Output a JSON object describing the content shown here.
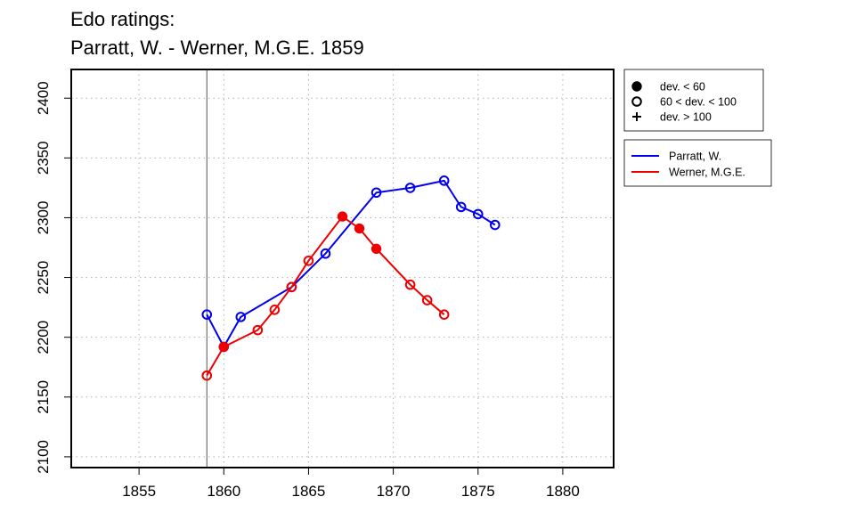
{
  "chart_data": {
    "type": "line",
    "title_lines": [
      "Edo ratings:",
      "Parratt, W. - Werner, M.G.E. 1859"
    ],
    "xlabel": "",
    "ylabel": "",
    "xlim": [
      1851,
      1883
    ],
    "ylim": [
      2091,
      2424
    ],
    "x_ticks": [
      1855,
      1860,
      1865,
      1870,
      1875,
      1880
    ],
    "y_ticks": [
      2100,
      2150,
      2200,
      2250,
      2300,
      2350,
      2400
    ],
    "grid": true,
    "reference_line_x": 1859,
    "deviation_legend": {
      "position": "top-right",
      "entries": [
        {
          "symbol": "filled-circle",
          "label": "dev. < 60"
        },
        {
          "symbol": "open-circle",
          "label": "60 < dev. < 100"
        },
        {
          "symbol": "plus",
          "label": "dev. > 100"
        }
      ]
    },
    "series_legend_position": "right",
    "series": [
      {
        "name": "Parratt, W.",
        "color": "#0000ee",
        "points": [
          {
            "x": 1859,
            "y": 2219,
            "dev": "open-circle"
          },
          {
            "x": 1860,
            "y": 2192,
            "dev": "open-circle"
          },
          {
            "x": 1861,
            "y": 2217,
            "dev": "open-circle"
          },
          {
            "x": 1864,
            "y": 2242,
            "dev": "open-circle"
          },
          {
            "x": 1866,
            "y": 2270,
            "dev": "open-circle"
          },
          {
            "x": 1869,
            "y": 2321,
            "dev": "open-circle"
          },
          {
            "x": 1871,
            "y": 2325,
            "dev": "open-circle"
          },
          {
            "x": 1873,
            "y": 2331,
            "dev": "open-circle"
          },
          {
            "x": 1874,
            "y": 2309,
            "dev": "open-circle"
          },
          {
            "x": 1875,
            "y": 2303,
            "dev": "open-circle"
          },
          {
            "x": 1876,
            "y": 2294,
            "dev": "open-circle"
          }
        ]
      },
      {
        "name": "Werner, M.G.E.",
        "color": "#ee0000",
        "points": [
          {
            "x": 1859,
            "y": 2168,
            "dev": "open-circle"
          },
          {
            "x": 1860,
            "y": 2192,
            "dev": "filled-circle"
          },
          {
            "x": 1862,
            "y": 2206,
            "dev": "open-circle"
          },
          {
            "x": 1863,
            "y": 2223,
            "dev": "open-circle"
          },
          {
            "x": 1864,
            "y": 2242,
            "dev": "open-circle"
          },
          {
            "x": 1865,
            "y": 2264,
            "dev": "open-circle"
          },
          {
            "x": 1867,
            "y": 2301,
            "dev": "filled-circle"
          },
          {
            "x": 1868,
            "y": 2291,
            "dev": "filled-circle"
          },
          {
            "x": 1869,
            "y": 2274,
            "dev": "filled-circle"
          },
          {
            "x": 1871,
            "y": 2244,
            "dev": "open-circle"
          },
          {
            "x": 1872,
            "y": 2231,
            "dev": "open-circle"
          },
          {
            "x": 1873,
            "y": 2219,
            "dev": "open-circle"
          }
        ]
      }
    ]
  }
}
